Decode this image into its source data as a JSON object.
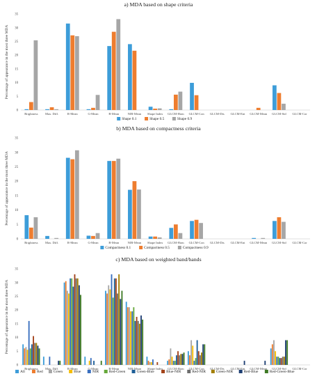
{
  "chart_data": [
    {
      "type": "bar",
      "title": "a) MDA based on shape criteria",
      "ylabel": "Percentage of appearance in the most three MDA",
      "ylim": [
        0,
        35
      ],
      "yticks": [
        0,
        5,
        10,
        15,
        20,
        25,
        30,
        35
      ],
      "grid": false,
      "legend": "bottom",
      "categories": [
        "Brightness",
        "Max. Diff.",
        "R-Mean",
        "G-Mean",
        "B-Mean",
        "NIR-Mean",
        "Shape Index",
        "GLCM-Hom",
        "GLCM-Con",
        "GLCM-Dis",
        "GLCM-Ent",
        "GLCM-Mean",
        "GLCM-Std",
        "GLCM-Cor"
      ],
      "series": [
        {
          "name": "Shape 0.1",
          "color": "#3d9dd9",
          "values": [
            0.3,
            0.3,
            31.5,
            0.3,
            23.3,
            24.0,
            1.2,
            0.3,
            9.9,
            0,
            0,
            0,
            9.0,
            0
          ]
        },
        {
          "name": "Shape 0.5",
          "color": "#ee7d2f",
          "values": [
            2.9,
            1.0,
            27.2,
            0.8,
            28.5,
            21.6,
            0.5,
            5.6,
            5.4,
            0,
            0,
            0.8,
            6.2,
            0
          ]
        },
        {
          "name": "Shape 0.9",
          "color": "#a6a6a6",
          "values": [
            25.4,
            0.3,
            26.9,
            5.5,
            33.1,
            0,
            0.6,
            6.7,
            0,
            0,
            0,
            0,
            2.3,
            0
          ]
        }
      ]
    },
    {
      "type": "bar",
      "title": "b) MDA based on compactness criteria",
      "ylabel": "Percentage of appearance in the most three MDA",
      "ylim": [
        0,
        35
      ],
      "yticks": [
        0,
        5,
        10,
        15,
        20,
        25,
        30,
        35
      ],
      "grid": false,
      "legend": "bottom",
      "categories": [
        "Brightness",
        "Max. Diff.",
        "R-Mean",
        "G-Mean",
        "B-Mean",
        "NIR-Mean",
        "Shape Index",
        "GLCM-Hom",
        "GLCM-Con",
        "GLCM-Dis",
        "GLCM-Ent",
        "GLCM-Mean",
        "GLCM-Std",
        "GLCM-Cor"
      ],
      "series": [
        {
          "name": "Compactness 0.1",
          "color": "#3d9dd9",
          "values": [
            8.2,
            1.0,
            28.1,
            1.1,
            27.0,
            17.0,
            0.8,
            3.8,
            6.2,
            0,
            0,
            0.3,
            6.2,
            0
          ]
        },
        {
          "name": "Compactness 0.5",
          "color": "#ee7d2f",
          "values": [
            3.9,
            0,
            27.6,
            1.0,
            27.0,
            20.0,
            0.8,
            5.0,
            6.6,
            0,
            0,
            0,
            7.5,
            0
          ]
        },
        {
          "name": "Compactness 0.9",
          "color": "#a6a6a6",
          "values": [
            7.5,
            0.3,
            30.7,
            2.0,
            27.8,
            17.1,
            0.5,
            2.0,
            5.5,
            0,
            0,
            0.3,
            5.9,
            0
          ]
        }
      ]
    },
    {
      "type": "bar",
      "title": "c) MDA based on weighted band/bands",
      "ylabel": "Percentage of appearance in the most three MDA",
      "ylim": [
        0,
        35
      ],
      "yticks": [
        0,
        5,
        10,
        15,
        20,
        25,
        30,
        35
      ],
      "grid": false,
      "legend": "bottom",
      "categories": [
        "Brightness",
        "Max. Diff.",
        "R-Mean",
        "G-Mean",
        "B-Mean",
        "NIR-Mean",
        "Shape Index",
        "GLCM-Hom",
        "GLCM-Con",
        "GLCM-Dis",
        "GLCM-Ent",
        "GLCM-Mean",
        "GLCM-Std",
        "GLCM-Cor"
      ],
      "series": [
        {
          "name": "All",
          "color": "#3d9dd9",
          "values": [
            7.5,
            3.0,
            30.0,
            3.0,
            27.0,
            23.0,
            3.0,
            1.5,
            5.0,
            0,
            0,
            0,
            6.0,
            0
          ]
        },
        {
          "name": "Red",
          "color": "#ee7d2f",
          "values": [
            6.0,
            0,
            30.5,
            0,
            26.0,
            21.0,
            1.5,
            2.0,
            3.5,
            0,
            0,
            0,
            7.5,
            0
          ]
        },
        {
          "name": "Green",
          "color": "#a6a6a6",
          "values": [
            6.5,
            0,
            27.0,
            0,
            29.0,
            21.0,
            1.0,
            6.0,
            9.0,
            0,
            0,
            0,
            9.0,
            0
          ]
        },
        {
          "name": "Blue",
          "color": "#f5bd00",
          "values": [
            5.5,
            0,
            26.0,
            1.5,
            27.5,
            19.5,
            1.0,
            3.0,
            7.0,
            0,
            0,
            0,
            5.0,
            0
          ]
        },
        {
          "name": "NIR",
          "color": "#3a6fbf",
          "values": [
            16.0,
            3.0,
            31.5,
            2.5,
            33.0,
            19.5,
            2.0,
            1.5,
            1.5,
            0,
            0,
            0,
            3.0,
            0
          ]
        },
        {
          "name": "Red-Green",
          "color": "#66a83a",
          "values": [
            6.0,
            0,
            31.5,
            0,
            24.5,
            21.0,
            0,
            1.5,
            2.5,
            0,
            0,
            0,
            3.0,
            0
          ]
        },
        {
          "name": "Green-Blue",
          "color": "#1f5f97",
          "values": [
            7.5,
            0,
            28.5,
            1.5,
            31.5,
            16.0,
            0,
            3.5,
            9.0,
            0,
            0,
            0,
            2.5,
            0
          ]
        },
        {
          "name": "Blue-NIR",
          "color": "#a3431a",
          "values": [
            10.5,
            0,
            33.0,
            0,
            31.5,
            17.5,
            1.0,
            5.0,
            5.0,
            0,
            0,
            0,
            2.5,
            0
          ]
        },
        {
          "name": "Red-NIR",
          "color": "#6e6e6e",
          "values": [
            8.0,
            0,
            31.5,
            0,
            26.0,
            16.0,
            0,
            3.5,
            3.5,
            0,
            0,
            0,
            3.0,
            0
          ]
        },
        {
          "name": "Green-NIR",
          "color": "#a37f00",
          "values": [
            8.0,
            0,
            31.5,
            0,
            33.0,
            15.0,
            0,
            4.0,
            4.5,
            0,
            0,
            0,
            3.0,
            0
          ]
        },
        {
          "name": "Red-Blue",
          "color": "#1e3f73",
          "values": [
            7.0,
            1.5,
            29.0,
            0,
            24.0,
            18.0,
            0,
            4.0,
            7.5,
            0,
            1.5,
            1.5,
            9.0,
            0
          ]
        },
        {
          "name": "Red-Green-Blue",
          "color": "#3f7a25",
          "values": [
            6.0,
            1.5,
            25.5,
            1.5,
            27.0,
            16.5,
            0,
            4.5,
            7.5,
            0,
            0,
            0,
            9.0,
            0
          ]
        }
      ]
    }
  ]
}
